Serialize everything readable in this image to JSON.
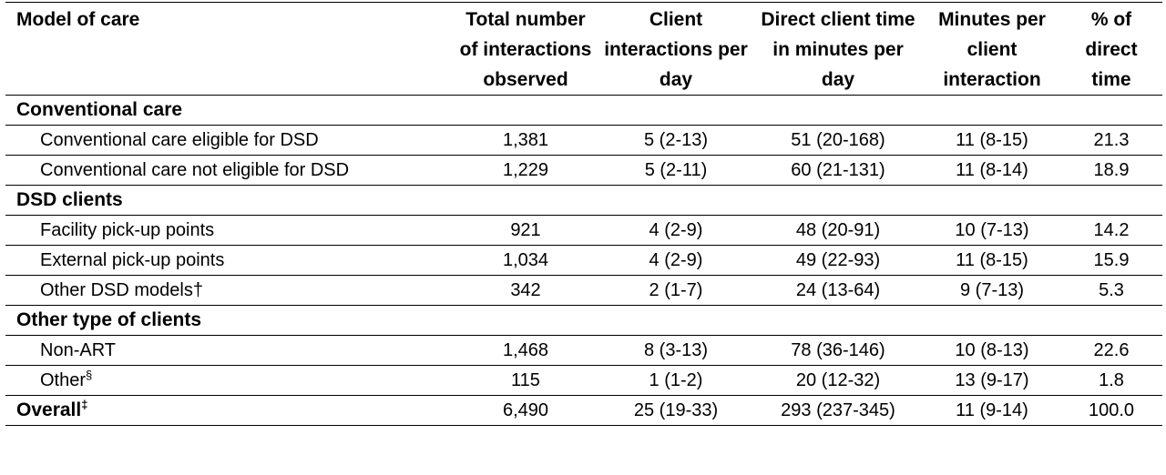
{
  "headers": [
    "Model of care",
    "Total number of interactions observed",
    "Client interactions per day",
    "Direct client time in minutes per day",
    "Minutes per client interaction",
    "% of direct time"
  ],
  "groups": [
    {
      "label": "Conventional care",
      "rows": [
        {
          "label": "Conventional care eligible for DSD",
          "mark": "",
          "values": [
            "1,381",
            "5 (2-13)",
            "51 (20-168)",
            "11 (8-15)",
            "21.3"
          ]
        },
        {
          "label": "Conventional care not eligible for DSD",
          "mark": "",
          "values": [
            "1,229",
            "5 (2-11)",
            "60 (21-131)",
            "11 (8-14)",
            "18.9"
          ]
        }
      ]
    },
    {
      "label": "DSD clients",
      "rows": [
        {
          "label": "Facility pick-up points",
          "mark": "",
          "values": [
            "921",
            "4 (2-9)",
            "48 (20-91)",
            "10 (7-13)",
            "14.2"
          ]
        },
        {
          "label": "External pick-up points",
          "mark": "",
          "values": [
            "1,034",
            "4 (2-9)",
            "49 (22-93)",
            "11 (8-15)",
            "15.9"
          ]
        },
        {
          "label": "Other DSD models",
          "mark": "†",
          "values": [
            "342",
            "2 (1-7)",
            "24 (13-64)",
            "9 (7-13)",
            "5.3"
          ]
        }
      ]
    },
    {
      "label": "Other type of clients",
      "rows": [
        {
          "label": "Non-ART",
          "mark": "",
          "values": [
            "1,468",
            "8 (3-13)",
            "78 (36-146)",
            "10 (8-13)",
            "22.6"
          ]
        },
        {
          "label": "Other",
          "mark": "§",
          "values": [
            "115",
            "1 (1-2)",
            "20 (12-32)",
            "13 (9-17)",
            "1.8"
          ]
        }
      ]
    }
  ],
  "overall": {
    "label": "Overall",
    "mark": "‡",
    "values": [
      "6,490",
      "25 (19-33)",
      "293 (237-345)",
      "11 (9-14)",
      "100.0"
    ]
  }
}
